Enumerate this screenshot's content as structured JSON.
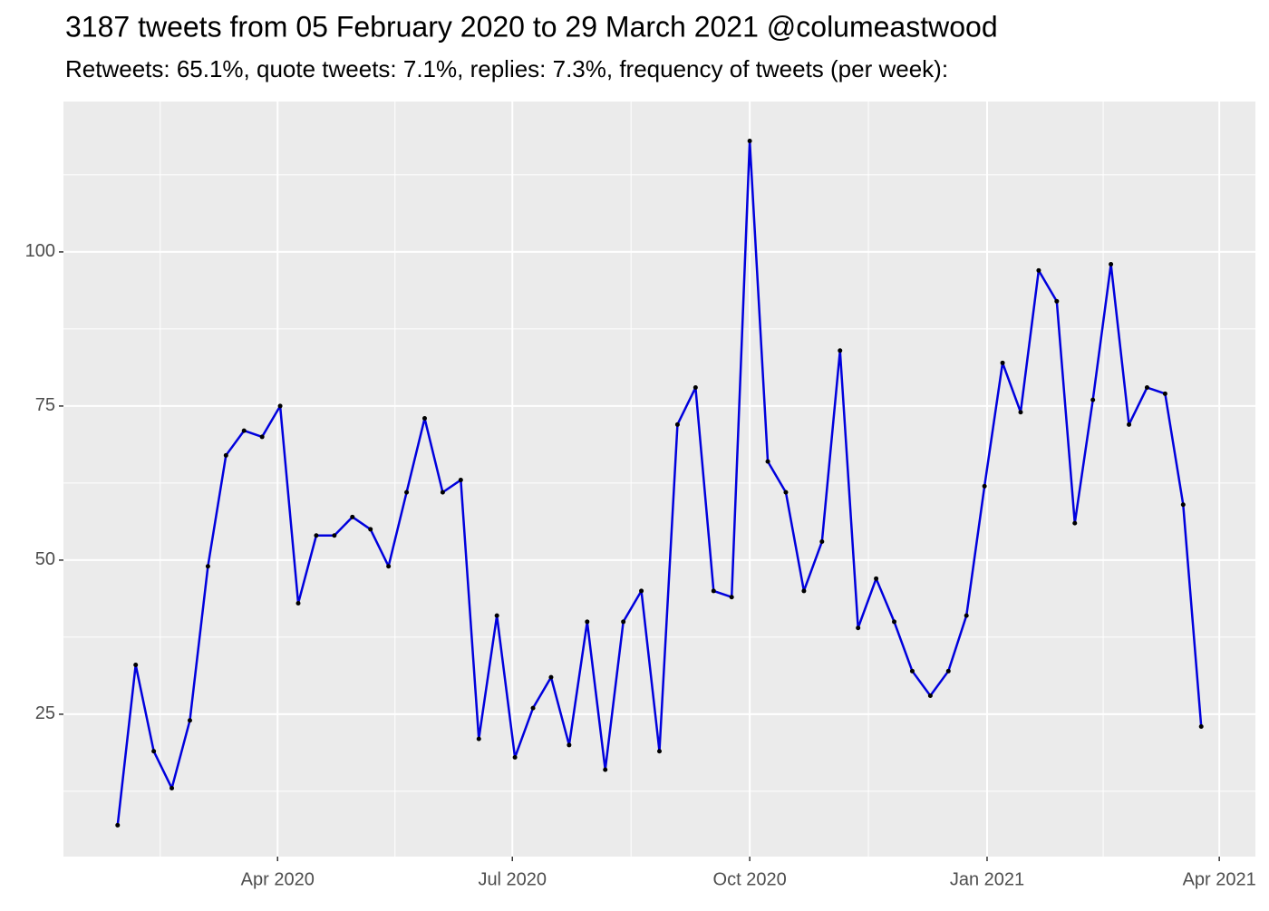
{
  "chart_data": {
    "type": "line",
    "title": "3187 tweets from 05 February 2020 to 29 March 2021 @columeastwood",
    "subtitle": "Retweets: 65.1%, quote tweets: 7.1%, replies: 7.3%, frequency of tweets (per week):",
    "x": [
      "2020-01-30",
      "2020-02-06",
      "2020-02-13",
      "2020-02-20",
      "2020-02-27",
      "2020-03-05",
      "2020-03-12",
      "2020-03-19",
      "2020-03-26",
      "2020-04-02",
      "2020-04-09",
      "2020-04-16",
      "2020-04-23",
      "2020-04-30",
      "2020-05-07",
      "2020-05-14",
      "2020-05-21",
      "2020-05-28",
      "2020-06-04",
      "2020-06-11",
      "2020-06-18",
      "2020-06-25",
      "2020-07-02",
      "2020-07-09",
      "2020-07-16",
      "2020-07-23",
      "2020-07-30",
      "2020-08-06",
      "2020-08-13",
      "2020-08-20",
      "2020-08-27",
      "2020-09-03",
      "2020-09-10",
      "2020-09-17",
      "2020-09-24",
      "2020-10-01",
      "2020-10-08",
      "2020-10-15",
      "2020-10-22",
      "2020-10-29",
      "2020-11-05",
      "2020-11-12",
      "2020-11-19",
      "2020-11-26",
      "2020-12-03",
      "2020-12-10",
      "2020-12-17",
      "2020-12-24",
      "2020-12-31",
      "2021-01-07",
      "2021-01-14",
      "2021-01-21",
      "2021-01-28",
      "2021-02-04",
      "2021-02-11",
      "2021-02-18",
      "2021-02-25",
      "2021-03-04",
      "2021-03-11",
      "2021-03-18",
      "2021-03-25"
    ],
    "series": [
      {
        "color": "#0000dd",
        "values": [
          7,
          33,
          19,
          13,
          24,
          49,
          67,
          71,
          70,
          75,
          43,
          54,
          54,
          57,
          55,
          49,
          61,
          73,
          61,
          63,
          21,
          41,
          18,
          26,
          31,
          20,
          40,
          16,
          40,
          45,
          19,
          72,
          78,
          45,
          44,
          118,
          66,
          61,
          45,
          53,
          84,
          39,
          47,
          40,
          32,
          28,
          32,
          41,
          62,
          82,
          74,
          97,
          92,
          56,
          76,
          98,
          72,
          78,
          77,
          59,
          23
        ]
      }
    ],
    "point_color": "#000000",
    "xlim": [
      "2020-01-09",
      "2021-04-15"
    ],
    "xticks": [
      {
        "value": "2020-04-01",
        "label": "Apr 2020"
      },
      {
        "value": "2020-07-01",
        "label": "Jul 2020"
      },
      {
        "value": "2020-10-01",
        "label": "Oct 2020"
      },
      {
        "value": "2021-01-01",
        "label": "Jan 2021"
      },
      {
        "value": "2021-04-01",
        "label": "Apr 2021"
      }
    ],
    "ylim": [
      1.9,
      124.4
    ],
    "yticks": [
      25,
      50,
      75,
      100
    ],
    "grid": true
  }
}
